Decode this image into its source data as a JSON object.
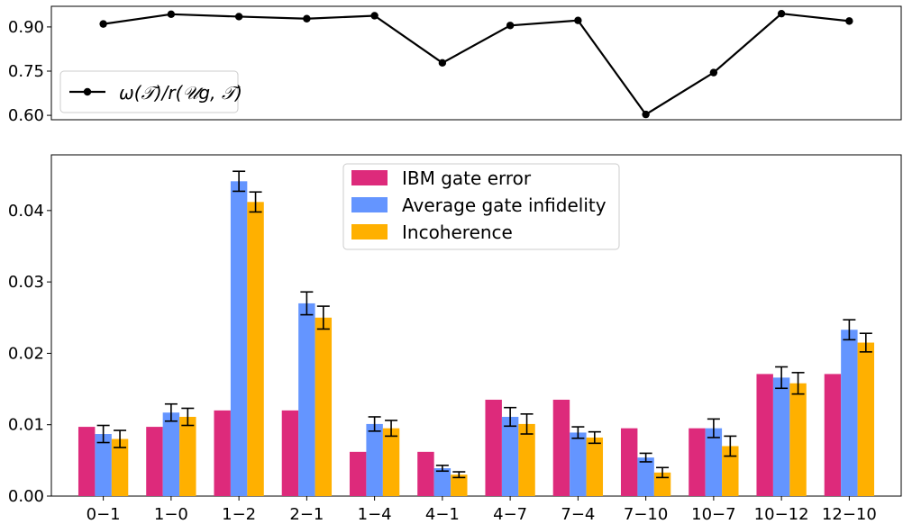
{
  "chart_data": [
    {
      "type": "line",
      "categories": [
        "0−1",
        "1−0",
        "1−2",
        "2−1",
        "1−4",
        "4−1",
        "4−7",
        "7−4",
        "7−10",
        "10−7",
        "10−12",
        "12−10"
      ],
      "series": [
        {
          "name": "ω(𝒯)/r(𝒰g, 𝒯)",
          "values": [
            0.91,
            0.943,
            0.935,
            0.928,
            0.938,
            0.778,
            0.905,
            0.922,
            0.603,
            0.745,
            0.945,
            0.92
          ],
          "color": "#000000"
        }
      ],
      "ylim": [
        0.585,
        0.97
      ],
      "yticks": [
        0.6,
        0.75,
        0.9
      ],
      "ytick_labels": [
        "0.60",
        "0.75",
        "0.90"
      ],
      "legend_position": "lower-left",
      "grid": false
    },
    {
      "type": "bar",
      "categories": [
        "0−1",
        "1−0",
        "1−2",
        "2−1",
        "1−4",
        "4−1",
        "4−7",
        "7−4",
        "7−10",
        "10−7",
        "10−12",
        "12−10"
      ],
      "series": [
        {
          "name": "IBM gate error",
          "color": "#dd2a7b",
          "values": [
            0.0097,
            0.0097,
            0.012,
            0.012,
            0.0062,
            0.0062,
            0.0135,
            0.0135,
            0.0095,
            0.0095,
            0.0171,
            0.0171
          ]
        },
        {
          "name": "Average gate infidelity",
          "color": "#6495ff",
          "values": [
            0.0087,
            0.0117,
            0.0441,
            0.027,
            0.0101,
            0.0039,
            0.0111,
            0.0089,
            0.0054,
            0.0095,
            0.0166,
            0.0233
          ],
          "errors": [
            0.0012,
            0.0012,
            0.0014,
            0.0016,
            0.001,
            0.0004,
            0.0013,
            0.0008,
            0.0006,
            0.0013,
            0.0015,
            0.0014
          ]
        },
        {
          "name": "Incoherence",
          "color": "#ffb000",
          "values": [
            0.008,
            0.0111,
            0.0412,
            0.025,
            0.0095,
            0.003,
            0.0101,
            0.0082,
            0.0033,
            0.007,
            0.0158,
            0.0215
          ],
          "errors": [
            0.0012,
            0.0012,
            0.0014,
            0.0016,
            0.0011,
            0.0004,
            0.0014,
            0.0008,
            0.0007,
            0.0014,
            0.0015,
            0.0013
          ]
        }
      ],
      "ylim": [
        0,
        0.0478
      ],
      "yticks": [
        0,
        0.01,
        0.02,
        0.03,
        0.04
      ],
      "ytick_labels": [
        "0.00",
        "0.01",
        "0.02",
        "0.03",
        "0.04"
      ],
      "legend_position": "top-center",
      "grid": false
    }
  ]
}
